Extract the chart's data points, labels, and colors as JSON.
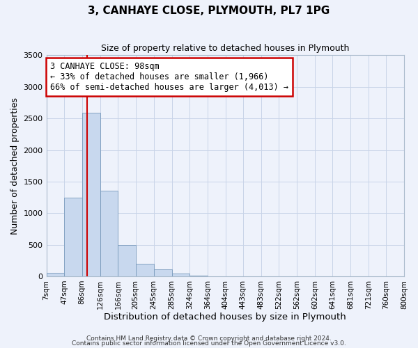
{
  "title": "3, CANHAYE CLOSE, PLYMOUTH, PL7 1PG",
  "subtitle": "Size of property relative to detached houses in Plymouth",
  "xlabel": "Distribution of detached houses by size in Plymouth",
  "ylabel": "Number of detached properties",
  "bin_labels": [
    "7sqm",
    "47sqm",
    "86sqm",
    "126sqm",
    "166sqm",
    "205sqm",
    "245sqm",
    "285sqm",
    "324sqm",
    "364sqm",
    "404sqm",
    "443sqm",
    "483sqm",
    "522sqm",
    "562sqm",
    "602sqm",
    "641sqm",
    "681sqm",
    "721sqm",
    "760sqm",
    "800sqm"
  ],
  "bin_edges": [
    7,
    47,
    86,
    126,
    166,
    205,
    245,
    285,
    324,
    364,
    404,
    443,
    483,
    522,
    562,
    602,
    641,
    681,
    721,
    760,
    800
  ],
  "bar_heights": [
    50,
    1240,
    2590,
    1350,
    500,
    200,
    105,
    45,
    10,
    5,
    3,
    2,
    1,
    0,
    0,
    0,
    0,
    0,
    0,
    0
  ],
  "bar_color": "#c8d8ee",
  "bar_edge_color": "#7799bb",
  "vline_x": 98,
  "vline_color": "#cc0000",
  "annotation_title": "3 CANHAYE CLOSE: 98sqm",
  "annotation_line1": "← 33% of detached houses are smaller (1,966)",
  "annotation_line2": "66% of semi-detached houses are larger (4,013) →",
  "annotation_box_facecolor": "#ffffff",
  "annotation_box_edge": "#cc0000",
  "ylim": [
    0,
    3500
  ],
  "yticks": [
    0,
    500,
    1000,
    1500,
    2000,
    2500,
    3000,
    3500
  ],
  "footer1": "Contains HM Land Registry data © Crown copyright and database right 2024.",
  "footer2": "Contains public sector information licensed under the Open Government Licence v3.0.",
  "bg_color": "#eef2fb",
  "grid_color": "#c8d4e8",
  "title_fontsize": 11,
  "subtitle_fontsize": 9
}
